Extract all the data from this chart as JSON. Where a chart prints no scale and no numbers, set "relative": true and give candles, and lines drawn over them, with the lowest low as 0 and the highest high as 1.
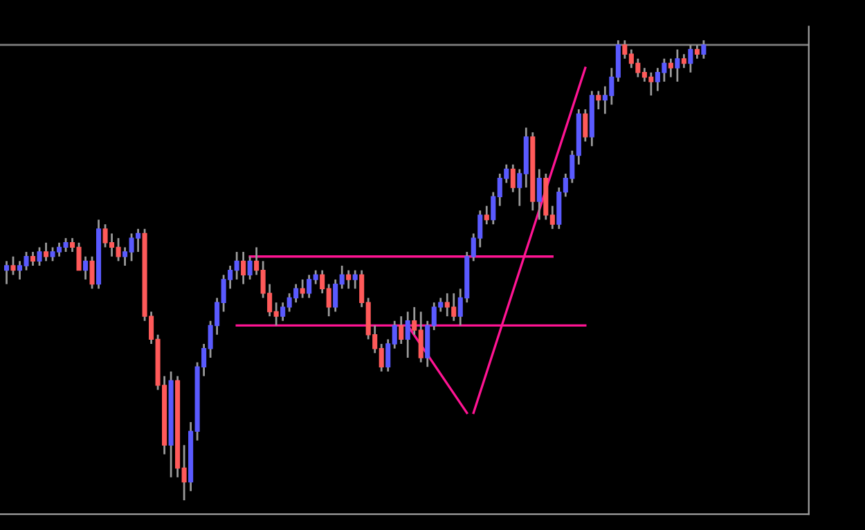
{
  "chart_data": {
    "type": "candlestick",
    "relative": true,
    "categories": [
      null,
      null,
      null,
      null,
      null,
      null,
      null,
      null,
      null,
      null,
      null,
      null,
      null,
      null,
      null,
      null,
      null,
      null,
      null,
      null,
      null,
      null,
      null,
      null,
      null,
      null,
      null,
      null,
      null,
      null,
      null,
      null,
      null,
      null,
      null,
      null,
      null,
      null,
      null,
      null,
      null,
      null,
      null,
      null,
      null,
      null,
      null,
      null,
      null,
      null,
      null,
      null,
      null,
      null,
      null,
      null,
      null,
      null,
      null,
      null,
      null,
      null,
      null,
      null,
      null,
      null,
      null,
      null,
      null,
      null,
      null,
      null,
      null,
      null,
      null,
      null,
      null,
      null,
      null,
      null,
      null,
      null,
      null,
      null,
      null,
      null,
      null,
      null,
      null,
      null,
      null,
      null,
      null,
      null,
      null,
      null,
      null,
      null,
      null,
      null,
      null,
      null,
      null,
      null,
      null,
      null,
      null
    ],
    "ohlc": [
      [
        0.5,
        0.52,
        0.47,
        0.51
      ],
      [
        0.51,
        0.53,
        0.49,
        0.5
      ],
      [
        0.5,
        0.52,
        0.48,
        0.51
      ],
      [
        0.51,
        0.54,
        0.5,
        0.53
      ],
      [
        0.53,
        0.54,
        0.51,
        0.52
      ],
      [
        0.52,
        0.55,
        0.51,
        0.54
      ],
      [
        0.54,
        0.56,
        0.52,
        0.53
      ],
      [
        0.53,
        0.55,
        0.52,
        0.54
      ],
      [
        0.54,
        0.56,
        0.53,
        0.55
      ],
      [
        0.55,
        0.57,
        0.54,
        0.56
      ],
      [
        0.56,
        0.57,
        0.54,
        0.55
      ],
      [
        0.55,
        0.56,
        0.5,
        0.5
      ],
      [
        0.5,
        0.53,
        0.48,
        0.52
      ],
      [
        0.52,
        0.53,
        0.46,
        0.47
      ],
      [
        0.47,
        0.61,
        0.46,
        0.59
      ],
      [
        0.59,
        0.6,
        0.55,
        0.56
      ],
      [
        0.56,
        0.58,
        0.53,
        0.55
      ],
      [
        0.55,
        0.57,
        0.52,
        0.53
      ],
      [
        0.53,
        0.55,
        0.51,
        0.54
      ],
      [
        0.54,
        0.58,
        0.52,
        0.57
      ],
      [
        0.57,
        0.59,
        0.54,
        0.58
      ],
      [
        0.58,
        0.59,
        0.39,
        0.4
      ],
      [
        0.4,
        0.41,
        0.34,
        0.35
      ],
      [
        0.35,
        0.36,
        0.24,
        0.25
      ],
      [
        0.25,
        0.27,
        0.1,
        0.12
      ],
      [
        0.12,
        0.28,
        0.05,
        0.26
      ],
      [
        0.26,
        0.27,
        0.05,
        0.07
      ],
      [
        0.07,
        0.12,
        0.0,
        0.04
      ],
      [
        0.04,
        0.17,
        0.02,
        0.15
      ],
      [
        0.15,
        0.3,
        0.13,
        0.29
      ],
      [
        0.29,
        0.34,
        0.27,
        0.33
      ],
      [
        0.33,
        0.39,
        0.31,
        0.38
      ],
      [
        0.38,
        0.44,
        0.36,
        0.43
      ],
      [
        0.43,
        0.49,
        0.41,
        0.48
      ],
      [
        0.48,
        0.51,
        0.46,
        0.5
      ],
      [
        0.5,
        0.54,
        0.48,
        0.52
      ],
      [
        0.52,
        0.54,
        0.47,
        0.49
      ],
      [
        0.49,
        0.53,
        0.48,
        0.52
      ],
      [
        0.52,
        0.55,
        0.49,
        0.5
      ],
      [
        0.5,
        0.52,
        0.44,
        0.45
      ],
      [
        0.45,
        0.47,
        0.4,
        0.41
      ],
      [
        0.41,
        0.43,
        0.38,
        0.4
      ],
      [
        0.4,
        0.43,
        0.39,
        0.42
      ],
      [
        0.42,
        0.45,
        0.41,
        0.44
      ],
      [
        0.44,
        0.47,
        0.43,
        0.46
      ],
      [
        0.46,
        0.48,
        0.44,
        0.45
      ],
      [
        0.45,
        0.49,
        0.44,
        0.48
      ],
      [
        0.48,
        0.5,
        0.47,
        0.49
      ],
      [
        0.49,
        0.5,
        0.45,
        0.46
      ],
      [
        0.46,
        0.47,
        0.4,
        0.42
      ],
      [
        0.42,
        0.48,
        0.41,
        0.47
      ],
      [
        0.47,
        0.51,
        0.46,
        0.49
      ],
      [
        0.49,
        0.5,
        0.46,
        0.48
      ],
      [
        0.48,
        0.5,
        0.46,
        0.49
      ],
      [
        0.49,
        0.5,
        0.42,
        0.43
      ],
      [
        0.43,
        0.44,
        0.35,
        0.36
      ],
      [
        0.36,
        0.38,
        0.32,
        0.33
      ],
      [
        0.33,
        0.34,
        0.28,
        0.29
      ],
      [
        0.29,
        0.35,
        0.28,
        0.34
      ],
      [
        0.34,
        0.39,
        0.33,
        0.38
      ],
      [
        0.38,
        0.4,
        0.34,
        0.35
      ],
      [
        0.35,
        0.41,
        0.31,
        0.39
      ],
      [
        0.39,
        0.42,
        0.36,
        0.37
      ],
      [
        0.37,
        0.41,
        0.3,
        0.31
      ],
      [
        0.31,
        0.39,
        0.29,
        0.38
      ],
      [
        0.38,
        0.43,
        0.37,
        0.42
      ],
      [
        0.42,
        0.44,
        0.41,
        0.43
      ],
      [
        0.43,
        0.45,
        0.4,
        0.42
      ],
      [
        0.42,
        0.45,
        0.39,
        0.4
      ],
      [
        0.4,
        0.46,
        0.38,
        0.44
      ],
      [
        0.44,
        0.54,
        0.43,
        0.53
      ],
      [
        0.53,
        0.58,
        0.52,
        0.57
      ],
      [
        0.57,
        0.63,
        0.55,
        0.62
      ],
      [
        0.62,
        0.64,
        0.6,
        0.61
      ],
      [
        0.61,
        0.67,
        0.6,
        0.66
      ],
      [
        0.66,
        0.71,
        0.64,
        0.7
      ],
      [
        0.7,
        0.73,
        0.69,
        0.72
      ],
      [
        0.72,
        0.73,
        0.67,
        0.68
      ],
      [
        0.68,
        0.72,
        0.64,
        0.71
      ],
      [
        0.71,
        0.81,
        0.68,
        0.79
      ],
      [
        0.79,
        0.8,
        0.63,
        0.65
      ],
      [
        0.65,
        0.72,
        0.61,
        0.7
      ],
      [
        0.7,
        0.71,
        0.61,
        0.62
      ],
      [
        0.62,
        0.64,
        0.59,
        0.6
      ],
      [
        0.6,
        0.68,
        0.59,
        0.67
      ],
      [
        0.67,
        0.71,
        0.66,
        0.7
      ],
      [
        0.7,
        0.76,
        0.69,
        0.75
      ],
      [
        0.75,
        0.85,
        0.73,
        0.84
      ],
      [
        0.84,
        0.85,
        0.78,
        0.79
      ],
      [
        0.79,
        0.89,
        0.77,
        0.88
      ],
      [
        0.88,
        0.89,
        0.85,
        0.87
      ],
      [
        0.87,
        0.9,
        0.84,
        0.88
      ],
      [
        0.88,
        0.94,
        0.86,
        0.92
      ],
      [
        0.92,
        1.0,
        0.91,
        0.99
      ],
      [
        0.99,
        1.0,
        0.96,
        0.97
      ],
      [
        0.97,
        0.98,
        0.94,
        0.95
      ],
      [
        0.95,
        0.96,
        0.92,
        0.93
      ],
      [
        0.93,
        0.94,
        0.91,
        0.92
      ],
      [
        0.92,
        0.93,
        0.88,
        0.91
      ],
      [
        0.91,
        0.94,
        0.89,
        0.93
      ],
      [
        0.93,
        0.96,
        0.91,
        0.95
      ],
      [
        0.95,
        0.96,
        0.92,
        0.94
      ],
      [
        0.94,
        0.98,
        0.91,
        0.96
      ],
      [
        0.96,
        0.97,
        0.94,
        0.95
      ],
      [
        0.95,
        0.99,
        0.93,
        0.98
      ],
      [
        0.98,
        0.99,
        0.96,
        0.97
      ],
      [
        0.97,
        1.0,
        0.96,
        0.99
      ]
    ],
    "series": [
      {
        "type": "line",
        "color": "#ff1493",
        "values": [
          null,
          null,
          null,
          null,
          null,
          null,
          null,
          null,
          null,
          null,
          null,
          null,
          null,
          null,
          null,
          null,
          null,
          null,
          null,
          null,
          null,
          null,
          null,
          null,
          null,
          null,
          null,
          null,
          null,
          null,
          null,
          null,
          null,
          null,
          null,
          null,
          null,
          0.53,
          null,
          null,
          null,
          null,
          null,
          null,
          null,
          null,
          null,
          null,
          null,
          null,
          null,
          null,
          null,
          null,
          null,
          null,
          null,
          null,
          null,
          null,
          null,
          null,
          null,
          null,
          null,
          null,
          null,
          null,
          null,
          null,
          null,
          null,
          null,
          null,
          null,
          null,
          null,
          null,
          null,
          null,
          null,
          null,
          null,
          0.53,
          null,
          null,
          null,
          null,
          null,
          null,
          null,
          null,
          null,
          null,
          null,
          null,
          null,
          null,
          null,
          null,
          null,
          null,
          null,
          null,
          null,
          null,
          null
        ]
      },
      {
        "type": "line",
        "color": "#ff1493",
        "values": [
          null,
          null,
          null,
          null,
          null,
          null,
          null,
          null,
          null,
          null,
          null,
          null,
          null,
          null,
          null,
          null,
          null,
          null,
          null,
          null,
          null,
          null,
          null,
          null,
          null,
          null,
          null,
          null,
          null,
          null,
          null,
          null,
          null,
          null,
          null,
          0.38,
          null,
          null,
          null,
          null,
          null,
          null,
          null,
          null,
          null,
          null,
          null,
          null,
          null,
          null,
          null,
          null,
          null,
          null,
          null,
          null,
          null,
          null,
          null,
          null,
          null,
          null,
          null,
          null,
          null,
          null,
          null,
          null,
          null,
          null,
          null,
          null,
          null,
          null,
          null,
          null,
          null,
          null,
          null,
          null,
          null,
          null,
          null,
          null,
          null,
          null,
          null,
          null,
          0.38,
          null,
          null,
          null,
          null,
          null,
          null,
          null,
          null,
          null,
          null,
          null,
          null,
          null,
          null,
          null,
          null,
          null,
          null
        ]
      },
      {
        "type": "line",
        "color": "#ff1493",
        "values": [
          null,
          null,
          null,
          null,
          null,
          null,
          null,
          null,
          null,
          null,
          null,
          null,
          null,
          null,
          null,
          null,
          null,
          null,
          null,
          null,
          null,
          null,
          null,
          null,
          null,
          null,
          null,
          null,
          null,
          null,
          null,
          null,
          null,
          null,
          null,
          null,
          null,
          null,
          null,
          null,
          null,
          null,
          null,
          null,
          null,
          null,
          null,
          null,
          null,
          null,
          null,
          null,
          null,
          null,
          null,
          null,
          null,
          null,
          null,
          null,
          null,
          0.38,
          null,
          null,
          null,
          null,
          null,
          null,
          null,
          null,
          0.19,
          null,
          null,
          null,
          null,
          null,
          null,
          null,
          null,
          null,
          null,
          null,
          null,
          null,
          null,
          null,
          null,
          null,
          null,
          null,
          null,
          null,
          null,
          null,
          null,
          null,
          null,
          null,
          null,
          null,
          null,
          null,
          null,
          null,
          null,
          null,
          null
        ]
      },
      {
        "type": "line",
        "color": "#ff1493",
        "values": [
          null,
          null,
          null,
          null,
          null,
          null,
          null,
          null,
          null,
          null,
          null,
          null,
          null,
          null,
          null,
          null,
          null,
          null,
          null,
          null,
          null,
          null,
          null,
          null,
          null,
          null,
          null,
          null,
          null,
          null,
          null,
          null,
          null,
          null,
          null,
          null,
          null,
          null,
          null,
          null,
          null,
          null,
          null,
          null,
          null,
          null,
          null,
          null,
          null,
          null,
          null,
          null,
          null,
          null,
          null,
          null,
          null,
          null,
          null,
          null,
          null,
          null,
          null,
          null,
          null,
          null,
          null,
          null,
          null,
          null,
          null,
          0.19,
          null,
          null,
          null,
          null,
          null,
          null,
          null,
          null,
          null,
          null,
          null,
          null,
          null,
          null,
          null,
          null,
          0.94,
          null,
          null,
          null,
          null,
          null,
          null,
          null,
          null,
          null,
          null,
          null,
          null,
          null,
          null,
          null,
          null,
          null,
          null
        ]
      }
    ],
    "ref_lines": [
      {
        "axis": "y",
        "value": 0.99,
        "color": "#808080"
      }
    ]
  }
}
